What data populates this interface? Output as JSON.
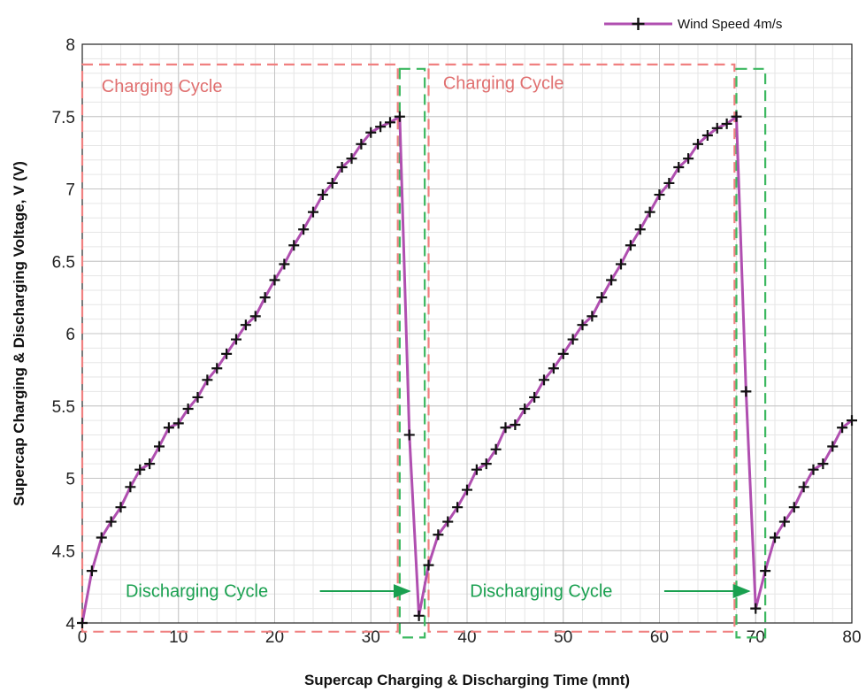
{
  "chart_data": {
    "type": "line",
    "xlabel": "Supercap Charging & Discharging Time (mnt)",
    "ylabel": "Supercap Charging & Discharging Voltage, V (V)",
    "xlim": [
      0,
      80
    ],
    "ylim": [
      4,
      8
    ],
    "x_ticks": [
      0,
      10,
      20,
      30,
      40,
      50,
      60,
      70,
      80
    ],
    "y_ticks": [
      4,
      4.5,
      5,
      5.5,
      6,
      6.5,
      7,
      7.5,
      8
    ],
    "x_tick_labels": [
      "0",
      "10",
      "20",
      "30",
      "40",
      "50",
      "60",
      "70",
      "80"
    ],
    "y_tick_labels": [
      "4",
      "4.5",
      "5",
      "5.5",
      "6",
      "6.5",
      "7",
      "7.5",
      "8"
    ],
    "grid": true,
    "minor_grid": true,
    "legend_position": "top-right",
    "series": [
      {
        "name": "Wind Speed 4m/s",
        "color": "#b04fb0",
        "marker": "plus",
        "x": [
          0,
          1,
          2,
          3,
          4,
          5,
          6,
          7,
          8,
          9,
          10,
          11,
          12,
          13,
          14,
          15,
          16,
          17,
          18,
          19,
          20,
          21,
          22,
          23,
          24,
          25,
          26,
          27,
          28,
          29,
          30,
          31,
          32,
          33,
          34,
          35,
          36,
          37,
          38,
          39,
          40,
          41,
          42,
          43,
          44,
          45,
          46,
          47,
          48,
          49,
          50,
          51,
          52,
          53,
          54,
          55,
          56,
          57,
          58,
          59,
          60,
          61,
          62,
          63,
          64,
          65,
          66,
          67,
          68,
          69,
          70,
          71,
          72,
          73,
          74,
          75,
          76,
          77,
          78,
          79,
          80
        ],
        "y": [
          4.0,
          4.36,
          4.59,
          4.7,
          4.8,
          4.94,
          5.06,
          5.1,
          5.22,
          5.35,
          5.38,
          5.48,
          5.56,
          5.68,
          5.76,
          5.86,
          5.96,
          6.06,
          6.12,
          6.25,
          6.37,
          6.48,
          6.61,
          6.72,
          6.84,
          6.96,
          7.04,
          7.15,
          7.21,
          7.31,
          7.39,
          7.43,
          7.46,
          7.5,
          5.3,
          4.05,
          4.4,
          4.61,
          4.7,
          4.8,
          4.92,
          5.06,
          5.1,
          5.2,
          5.35,
          5.37,
          5.48,
          5.56,
          5.68,
          5.76,
          5.86,
          5.96,
          6.06,
          6.12,
          6.25,
          6.37,
          6.48,
          6.61,
          6.72,
          6.84,
          6.96,
          7.04,
          7.15,
          7.21,
          7.31,
          7.37,
          7.42,
          7.45,
          7.5,
          5.6,
          4.1,
          4.36,
          4.59,
          4.7,
          4.8,
          4.94,
          5.06,
          5.1,
          5.22,
          5.35,
          5.4
        ]
      }
    ],
    "annotations": [
      {
        "text": "Charging Cycle",
        "color": "#e07070"
      },
      {
        "text": "Charging Cycle",
        "color": "#e07070"
      },
      {
        "text": "Discharging Cycle",
        "color": "#1aa050"
      },
      {
        "text": "Discharging Cycle",
        "color": "#1aa050"
      }
    ]
  }
}
